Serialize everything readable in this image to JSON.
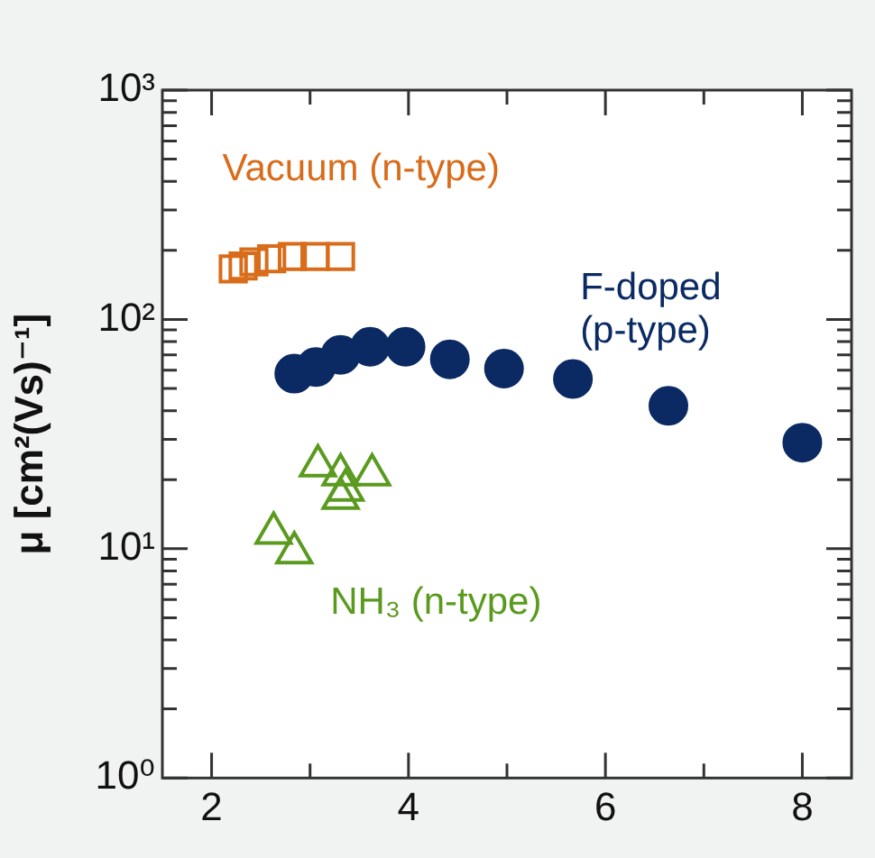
{
  "chart_data": {
    "type": "scatter",
    "ylabel": "μ [cm²(Vs)⁻¹]",
    "log": "y",
    "grid": false,
    "legend": false,
    "xlim": [
      1.5,
      8.5
    ],
    "xticks": [
      2,
      {
        "value": 3,
        "label": null
      },
      4,
      {
        "value": 5,
        "label": null
      },
      6,
      {
        "value": 7,
        "label": null
      },
      8
    ],
    "ylim": [
      1,
      1000
    ],
    "yticks": [
      {
        "value": 1,
        "label": "10⁰"
      },
      {
        "value": 2,
        "label": null
      },
      {
        "value": 3,
        "label": null
      },
      {
        "value": 4,
        "label": null
      },
      {
        "value": 5,
        "label": null
      },
      {
        "value": 6,
        "label": null
      },
      {
        "value": 7,
        "label": null
      },
      {
        "value": 8,
        "label": null
      },
      {
        "value": 9,
        "label": null
      },
      {
        "value": 10,
        "label": "10¹"
      },
      {
        "value": 20,
        "label": null
      },
      {
        "value": 30,
        "label": null
      },
      {
        "value": 40,
        "label": null
      },
      {
        "value": 50,
        "label": null
      },
      {
        "value": 60,
        "label": null
      },
      {
        "value": 70,
        "label": null
      },
      {
        "value": 80,
        "label": null
      },
      {
        "value": 90,
        "label": null
      },
      {
        "value": 100,
        "label": "10²"
      },
      {
        "value": 200,
        "label": null
      },
      {
        "value": 300,
        "label": null
      },
      {
        "value": 400,
        "label": null
      },
      {
        "value": 500,
        "label": null
      },
      {
        "value": 600,
        "label": null
      },
      {
        "value": 700,
        "label": null
      },
      {
        "value": 800,
        "label": null
      },
      {
        "value": 900,
        "label": null
      },
      {
        "value": 1000,
        "label": "10³"
      }
    ],
    "series": [
      {
        "name": "Vacuum (n-type)",
        "color": "#d86c1a",
        "marker": "square",
        "x": [
          2.22,
          2.32,
          2.43,
          2.61,
          2.82,
          3.05,
          3.31
        ],
        "values": [
          166,
          171,
          178,
          184,
          188,
          188,
          188
        ]
      },
      {
        "name": "F-doped (p-type)",
        "color": "#0b2a63",
        "marker": "circle",
        "x": [
          2.84,
          3.06,
          3.31,
          3.61,
          3.97,
          4.42,
          4.97,
          5.67,
          6.64,
          8.0
        ],
        "values": [
          58,
          62,
          70,
          76,
          76,
          67,
          61,
          55,
          42,
          29
        ]
      },
      {
        "name": "NH₃ (n-type)",
        "color": "#5a9a1e",
        "marker": "triangle",
        "x": [
          3.08,
          3.31,
          3.63,
          3.31,
          3.36,
          2.63,
          2.84
        ],
        "values": [
          23,
          21,
          21,
          16.6,
          18,
          11.7,
          9.6
        ]
      }
    ]
  }
}
